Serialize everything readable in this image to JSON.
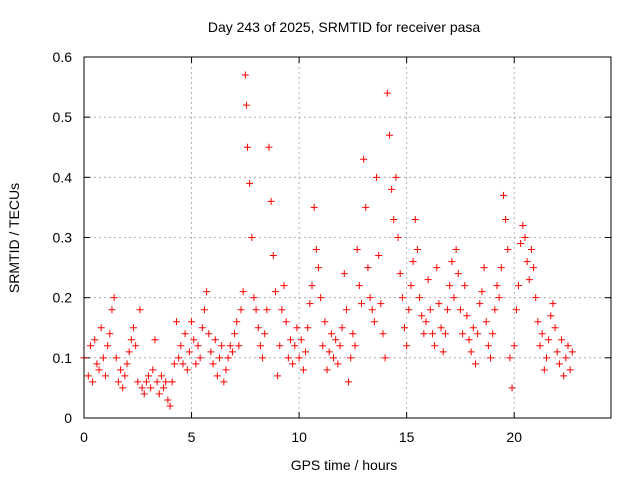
{
  "chart_data": {
    "type": "scatter",
    "title": "Day 243 of 2025, SRMTID for receiver pasa",
    "xlabel": "GPS time / hours",
    "ylabel": "SRMTID / TECUs",
    "xlim": [
      0,
      24.5
    ],
    "ylim": [
      0,
      0.6
    ],
    "xticks": [
      0,
      5,
      10,
      15,
      20
    ],
    "xtick_labels": [
      "0",
      "5",
      "10",
      "15",
      "20"
    ],
    "yticks": [
      0,
      0.1,
      0.2,
      0.3,
      0.4,
      0.5,
      0.6
    ],
    "ytick_labels": [
      "0",
      "0.1",
      "0.2",
      "0.3",
      "0.4",
      "0.5",
      "0.6"
    ],
    "grid": true,
    "marker": "+",
    "marker_color": "#ff0000",
    "series": [
      {
        "name": "SRMTID",
        "points": [
          [
            0.0,
            0.1
          ],
          [
            0.2,
            0.07
          ],
          [
            0.3,
            0.12
          ],
          [
            0.4,
            0.06
          ],
          [
            0.5,
            0.13
          ],
          [
            0.6,
            0.09
          ],
          [
            0.7,
            0.08
          ],
          [
            0.8,
            0.15
          ],
          [
            0.9,
            0.1
          ],
          [
            1.0,
            0.07
          ],
          [
            1.1,
            0.12
          ],
          [
            1.2,
            0.14
          ],
          [
            1.3,
            0.18
          ],
          [
            1.4,
            0.2
          ],
          [
            1.5,
            0.1
          ],
          [
            1.6,
            0.06
          ],
          [
            1.7,
            0.08
          ],
          [
            1.8,
            0.05
          ],
          [
            1.9,
            0.07
          ],
          [
            2.0,
            0.09
          ],
          [
            2.1,
            0.11
          ],
          [
            2.2,
            0.13
          ],
          [
            2.3,
            0.15
          ],
          [
            2.4,
            0.12
          ],
          [
            2.5,
            0.06
          ],
          [
            2.6,
            0.18
          ],
          [
            2.7,
            0.05
          ],
          [
            2.8,
            0.04
          ],
          [
            2.9,
            0.06
          ],
          [
            3.0,
            0.07
          ],
          [
            3.1,
            0.05
          ],
          [
            3.2,
            0.08
          ],
          [
            3.3,
            0.13
          ],
          [
            3.4,
            0.06
          ],
          [
            3.5,
            0.04
          ],
          [
            3.6,
            0.07
          ],
          [
            3.7,
            0.05
          ],
          [
            3.8,
            0.06
          ],
          [
            3.9,
            0.03
          ],
          [
            4.0,
            0.02
          ],
          [
            4.1,
            0.06
          ],
          [
            4.2,
            0.09
          ],
          [
            4.3,
            0.16
          ],
          [
            4.4,
            0.1
          ],
          [
            4.5,
            0.12
          ],
          [
            4.6,
            0.09
          ],
          [
            4.7,
            0.14
          ],
          [
            4.8,
            0.08
          ],
          [
            4.9,
            0.11
          ],
          [
            5.0,
            0.16
          ],
          [
            5.1,
            0.13
          ],
          [
            5.2,
            0.09
          ],
          [
            5.3,
            0.12
          ],
          [
            5.4,
            0.1
          ],
          [
            5.5,
            0.15
          ],
          [
            5.6,
            0.18
          ],
          [
            5.7,
            0.21
          ],
          [
            5.8,
            0.14
          ],
          [
            5.9,
            0.11
          ],
          [
            6.0,
            0.09
          ],
          [
            6.1,
            0.13
          ],
          [
            6.2,
            0.07
          ],
          [
            6.3,
            0.1
          ],
          [
            6.4,
            0.12
          ],
          [
            6.5,
            0.06
          ],
          [
            6.6,
            0.08
          ],
          [
            6.7,
            0.1
          ],
          [
            6.8,
            0.12
          ],
          [
            6.9,
            0.11
          ],
          [
            7.0,
            0.14
          ],
          [
            7.1,
            0.16
          ],
          [
            7.2,
            0.12
          ],
          [
            7.3,
            0.18
          ],
          [
            7.4,
            0.21
          ],
          [
            7.5,
            0.57
          ],
          [
            7.55,
            0.52
          ],
          [
            7.6,
            0.45
          ],
          [
            7.7,
            0.39
          ],
          [
            7.8,
            0.3
          ],
          [
            7.9,
            0.2
          ],
          [
            8.0,
            0.18
          ],
          [
            8.1,
            0.15
          ],
          [
            8.2,
            0.12
          ],
          [
            8.3,
            0.1
          ],
          [
            8.4,
            0.14
          ],
          [
            8.5,
            0.18
          ],
          [
            8.6,
            0.45
          ],
          [
            8.7,
            0.36
          ],
          [
            8.8,
            0.27
          ],
          [
            8.9,
            0.21
          ],
          [
            9.0,
            0.07
          ],
          [
            9.1,
            0.12
          ],
          [
            9.2,
            0.18
          ],
          [
            9.3,
            0.22
          ],
          [
            9.4,
            0.16
          ],
          [
            9.5,
            0.1
          ],
          [
            9.6,
            0.13
          ],
          [
            9.7,
            0.09
          ],
          [
            9.8,
            0.12
          ],
          [
            9.9,
            0.15
          ],
          [
            10.0,
            0.1
          ],
          [
            10.1,
            0.13
          ],
          [
            10.2,
            0.08
          ],
          [
            10.3,
            0.11
          ],
          [
            10.4,
            0.15
          ],
          [
            10.5,
            0.19
          ],
          [
            10.6,
            0.22
          ],
          [
            10.7,
            0.35
          ],
          [
            10.8,
            0.28
          ],
          [
            10.9,
            0.25
          ],
          [
            11.0,
            0.2
          ],
          [
            11.1,
            0.12
          ],
          [
            11.2,
            0.16
          ],
          [
            11.3,
            0.08
          ],
          [
            11.4,
            0.11
          ],
          [
            11.5,
            0.14
          ],
          [
            11.6,
            0.1
          ],
          [
            11.7,
            0.13
          ],
          [
            11.8,
            0.09
          ],
          [
            11.9,
            0.12
          ],
          [
            12.0,
            0.15
          ],
          [
            12.1,
            0.24
          ],
          [
            12.2,
            0.18
          ],
          [
            12.3,
            0.06
          ],
          [
            12.4,
            0.1
          ],
          [
            12.5,
            0.14
          ],
          [
            12.6,
            0.12
          ],
          [
            12.7,
            0.28
          ],
          [
            12.8,
            0.22
          ],
          [
            12.9,
            0.19
          ],
          [
            13.0,
            0.43
          ],
          [
            13.1,
            0.35
          ],
          [
            13.2,
            0.25
          ],
          [
            13.3,
            0.2
          ],
          [
            13.4,
            0.18
          ],
          [
            13.5,
            0.16
          ],
          [
            13.6,
            0.4
          ],
          [
            13.7,
            0.27
          ],
          [
            13.8,
            0.19
          ],
          [
            13.9,
            0.14
          ],
          [
            14.0,
            0.1
          ],
          [
            14.1,
            0.54
          ],
          [
            14.2,
            0.47
          ],
          [
            14.3,
            0.38
          ],
          [
            14.4,
            0.33
          ],
          [
            14.5,
            0.4
          ],
          [
            14.6,
            0.3
          ],
          [
            14.7,
            0.24
          ],
          [
            14.8,
            0.2
          ],
          [
            14.9,
            0.15
          ],
          [
            15.0,
            0.12
          ],
          [
            15.1,
            0.18
          ],
          [
            15.2,
            0.22
          ],
          [
            15.3,
            0.26
          ],
          [
            15.4,
            0.33
          ],
          [
            15.5,
            0.28
          ],
          [
            15.6,
            0.2
          ],
          [
            15.7,
            0.17
          ],
          [
            15.8,
            0.14
          ],
          [
            15.9,
            0.16
          ],
          [
            16.0,
            0.23
          ],
          [
            16.1,
            0.18
          ],
          [
            16.2,
            0.14
          ],
          [
            16.3,
            0.12
          ],
          [
            16.4,
            0.25
          ],
          [
            16.5,
            0.19
          ],
          [
            16.6,
            0.15
          ],
          [
            16.7,
            0.11
          ],
          [
            16.8,
            0.14
          ],
          [
            16.9,
            0.18
          ],
          [
            17.0,
            0.22
          ],
          [
            17.1,
            0.26
          ],
          [
            17.2,
            0.2
          ],
          [
            17.3,
            0.28
          ],
          [
            17.4,
            0.24
          ],
          [
            17.5,
            0.18
          ],
          [
            17.6,
            0.14
          ],
          [
            17.7,
            0.22
          ],
          [
            17.8,
            0.17
          ],
          [
            17.9,
            0.13
          ],
          [
            18.0,
            0.11
          ],
          [
            18.1,
            0.15
          ],
          [
            18.2,
            0.09
          ],
          [
            18.3,
            0.14
          ],
          [
            18.4,
            0.19
          ],
          [
            18.5,
            0.21
          ],
          [
            18.6,
            0.25
          ],
          [
            18.7,
            0.16
          ],
          [
            18.8,
            0.12
          ],
          [
            18.9,
            0.1
          ],
          [
            19.0,
            0.14
          ],
          [
            19.1,
            0.18
          ],
          [
            19.2,
            0.22
          ],
          [
            19.3,
            0.2
          ],
          [
            19.4,
            0.25
          ],
          [
            19.5,
            0.37
          ],
          [
            19.6,
            0.33
          ],
          [
            19.7,
            0.28
          ],
          [
            19.8,
            0.1
          ],
          [
            19.9,
            0.05
          ],
          [
            20.0,
            0.12
          ],
          [
            20.1,
            0.18
          ],
          [
            20.2,
            0.22
          ],
          [
            20.3,
            0.29
          ],
          [
            20.4,
            0.32
          ],
          [
            20.5,
            0.3
          ],
          [
            20.6,
            0.26
          ],
          [
            20.7,
            0.23
          ],
          [
            20.8,
            0.28
          ],
          [
            20.9,
            0.25
          ],
          [
            21.0,
            0.2
          ],
          [
            21.1,
            0.16
          ],
          [
            21.2,
            0.12
          ],
          [
            21.3,
            0.14
          ],
          [
            21.4,
            0.08
          ],
          [
            21.5,
            0.1
          ],
          [
            21.6,
            0.13
          ],
          [
            21.7,
            0.17
          ],
          [
            21.8,
            0.19
          ],
          [
            21.9,
            0.15
          ],
          [
            22.0,
            0.11
          ],
          [
            22.1,
            0.09
          ],
          [
            22.2,
            0.13
          ],
          [
            22.3,
            0.07
          ],
          [
            22.4,
            0.1
          ],
          [
            22.5,
            0.12
          ],
          [
            22.6,
            0.08
          ],
          [
            22.7,
            0.11
          ]
        ]
      }
    ]
  }
}
